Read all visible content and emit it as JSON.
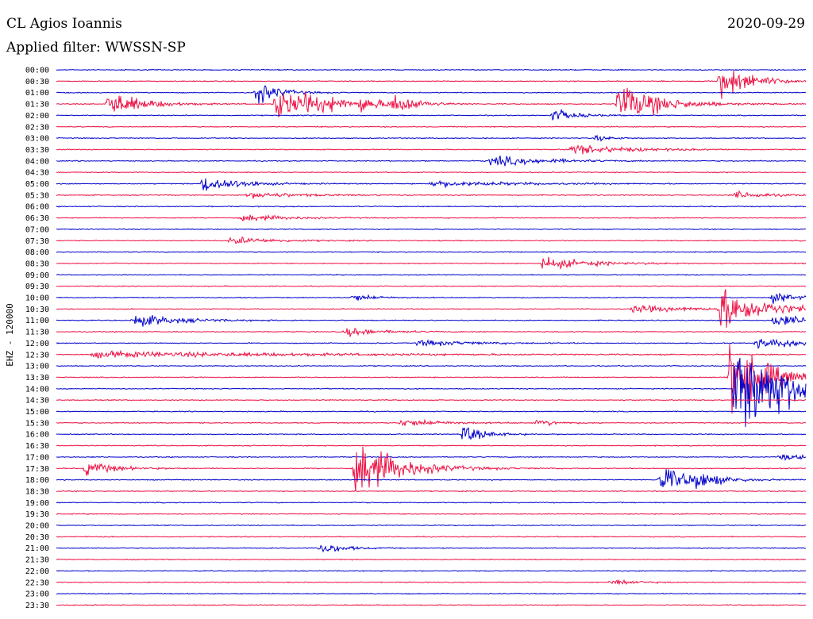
{
  "header": {
    "station": "CL Agios Ioannis",
    "date": "2020-09-29",
    "filter": "Applied filter: WWSSN-SP"
  },
  "chart_data": {
    "type": "line",
    "title": "CL Agios Ioannis",
    "subtitle": "Applied filter: WWSSN-SP",
    "ylabel": "EHZ - 120000",
    "colors": [
      "#0000cc",
      "#ee1144"
    ],
    "time_labels": [
      "00:00",
      "00:30",
      "01:00",
      "01:30",
      "02:00",
      "02:30",
      "03:00",
      "03:30",
      "04:00",
      "04:30",
      "05:00",
      "05:30",
      "06:00",
      "06:30",
      "07:00",
      "07:30",
      "08:00",
      "08:30",
      "09:00",
      "09:30",
      "10:00",
      "10:30",
      "11:00",
      "11:30",
      "12:00",
      "12:30",
      "13:00",
      "13:30",
      "14:00",
      "14:30",
      "15:00",
      "15:30",
      "16:00",
      "16:30",
      "17:00",
      "17:30",
      "18:00",
      "18:30",
      "19:00",
      "19:30",
      "20:00",
      "20:30",
      "21:00",
      "21:30",
      "22:00",
      "22:30",
      "23:00",
      "23:30"
    ],
    "trace_span_minutes": 30,
    "events": [
      {
        "row": 1,
        "minute": 26.6,
        "amp": 22,
        "width": 1.2
      },
      {
        "row": 2,
        "minute": 8.0,
        "amp": 16,
        "width": 0.8
      },
      {
        "row": 3,
        "minute": 2.1,
        "amp": 18,
        "width": 1.2
      },
      {
        "row": 3,
        "minute": 8.8,
        "amp": 22,
        "width": 1.2
      },
      {
        "row": 3,
        "minute": 10.0,
        "amp": 10,
        "width": 0.8
      },
      {
        "row": 3,
        "minute": 11.1,
        "amp": 6,
        "width": 0.6
      },
      {
        "row": 3,
        "minute": 12.2,
        "amp": 9,
        "width": 0.8
      },
      {
        "row": 3,
        "minute": 13.5,
        "amp": 14,
        "width": 0.8
      },
      {
        "row": 3,
        "minute": 22.5,
        "amp": 28,
        "width": 1.5
      },
      {
        "row": 4,
        "minute": 19.9,
        "amp": 9,
        "width": 0.8
      },
      {
        "row": 6,
        "minute": 21.6,
        "amp": 4,
        "width": 0.6
      },
      {
        "row": 7,
        "minute": 20.6,
        "amp": 7,
        "width": 2.0
      },
      {
        "row": 8,
        "minute": 17.4,
        "amp": 7,
        "width": 2.0
      },
      {
        "row": 10,
        "minute": 5.9,
        "amp": 13,
        "width": 1.2
      },
      {
        "row": 10,
        "minute": 15.0,
        "amp": 4,
        "width": 3.0
      },
      {
        "row": 11,
        "minute": 7.7,
        "amp": 4,
        "width": 2.0
      },
      {
        "row": 11,
        "minute": 27.2,
        "amp": 5,
        "width": 1.2
      },
      {
        "row": 13,
        "minute": 7.5,
        "amp": 5,
        "width": 1.5
      },
      {
        "row": 15,
        "minute": 7.0,
        "amp": 5,
        "width": 1.5
      },
      {
        "row": 17,
        "minute": 19.5,
        "amp": 8,
        "width": 1.8
      },
      {
        "row": 20,
        "minute": 11.9,
        "amp": 5,
        "width": 0.8
      },
      {
        "row": 20,
        "minute": 28.7,
        "amp": 7,
        "width": 0.8
      },
      {
        "row": 21,
        "minute": 23.1,
        "amp": 5,
        "width": 2.0
      },
      {
        "row": 21,
        "minute": 26.6,
        "amp": 30,
        "width": 1.5
      },
      {
        "row": 22,
        "minute": 3.1,
        "amp": 9,
        "width": 1.6
      },
      {
        "row": 22,
        "minute": 28.7,
        "amp": 8,
        "width": 1.5
      },
      {
        "row": 23,
        "minute": 11.6,
        "amp": 6,
        "width": 1.2
      },
      {
        "row": 24,
        "minute": 14.5,
        "amp": 4,
        "width": 2.0
      },
      {
        "row": 24,
        "minute": 28.0,
        "amp": 5,
        "width": 6.0
      },
      {
        "row": 25,
        "minute": 1.5,
        "amp": 4,
        "width": 8.0
      },
      {
        "row": 27,
        "minute": 27.0,
        "amp": 60,
        "width": 1.2
      },
      {
        "row": 28,
        "minute": 27.2,
        "amp": 70,
        "width": 2.0
      },
      {
        "row": 31,
        "minute": 13.8,
        "amp": 5,
        "width": 1.6
      },
      {
        "row": 31,
        "minute": 19.3,
        "amp": 5,
        "width": 0.6
      },
      {
        "row": 32,
        "minute": 16.3,
        "amp": 12,
        "width": 0.8
      },
      {
        "row": 34,
        "minute": 29.0,
        "amp": 4,
        "width": 1.2
      },
      {
        "row": 35,
        "minute": 1.2,
        "amp": 10,
        "width": 1.0
      },
      {
        "row": 35,
        "minute": 12.0,
        "amp": 42,
        "width": 1.5
      },
      {
        "row": 36,
        "minute": 24.2,
        "amp": 18,
        "width": 1.2
      },
      {
        "row": 36,
        "minute": 25.6,
        "amp": 8,
        "width": 0.8
      },
      {
        "row": 42,
        "minute": 10.6,
        "amp": 8,
        "width": 0.8
      },
      {
        "row": 45,
        "minute": 22.2,
        "amp": 5,
        "width": 0.8
      }
    ]
  }
}
